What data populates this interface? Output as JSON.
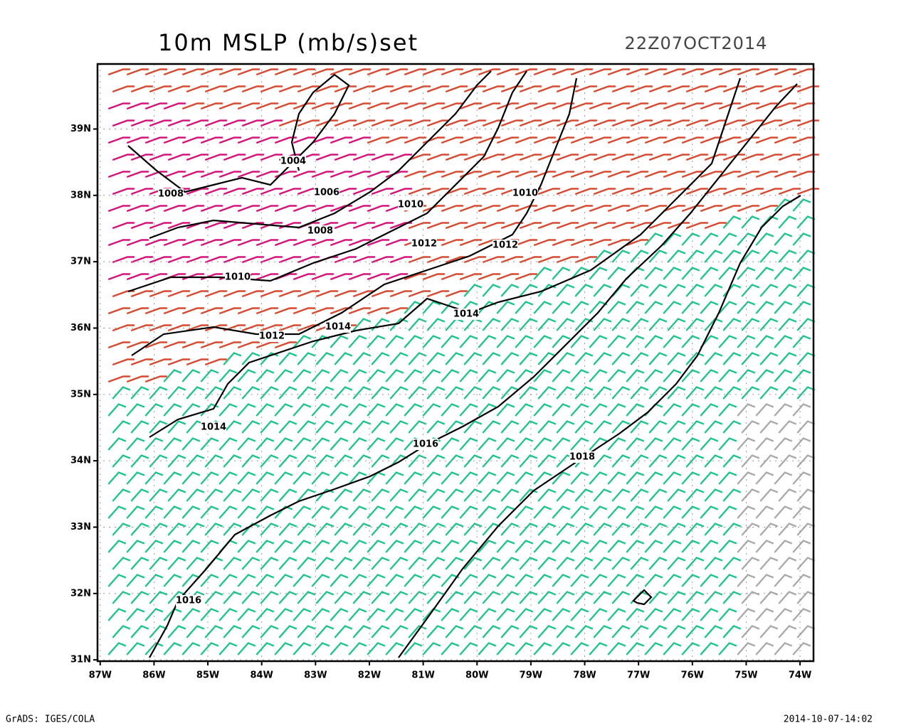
{
  "map": {
    "title": "10m MSLP (mb/s)set",
    "valid_time": "22Z07OCT2014",
    "lon_range": [
      -87.05,
      -73.75
    ],
    "lat_range": [
      30.98,
      39.98
    ],
    "lon_ticks": [
      {
        "value": -87,
        "label": "87W"
      },
      {
        "value": -86,
        "label": "86W"
      },
      {
        "value": -85,
        "label": "85W"
      },
      {
        "value": -84,
        "label": "84W"
      },
      {
        "value": -83,
        "label": "83W"
      },
      {
        "value": -82,
        "label": "82W"
      },
      {
        "value": -81,
        "label": "81W"
      },
      {
        "value": -80,
        "label": "80W"
      },
      {
        "value": -79,
        "label": "79W"
      },
      {
        "value": -78,
        "label": "78W"
      },
      {
        "value": -77,
        "label": "77W"
      },
      {
        "value": -76,
        "label": "76W"
      },
      {
        "value": -75,
        "label": "75W"
      },
      {
        "value": -74,
        "label": "74W"
      }
    ],
    "lat_ticks": [
      {
        "value": 31,
        "label": "31N"
      },
      {
        "value": 32,
        "label": "32N"
      },
      {
        "value": 33,
        "label": "33N"
      },
      {
        "value": 34,
        "label": "34N"
      },
      {
        "value": 35,
        "label": "35N"
      },
      {
        "value": 36,
        "label": "36N"
      },
      {
        "value": 37,
        "label": "37N"
      },
      {
        "value": 38,
        "label": "38N"
      },
      {
        "value": 39,
        "label": "39N"
      }
    ],
    "contour_labels": [
      1004,
      1008,
      1006,
      1010,
      1010,
      1008,
      1012,
      1012,
      1010,
      1014,
      1012,
      1014,
      1014,
      1016,
      1018,
      1016
    ],
    "footer_left": "GrADS: IGES/COLA",
    "footer_right": "2014-10-07-14:02"
  }
}
